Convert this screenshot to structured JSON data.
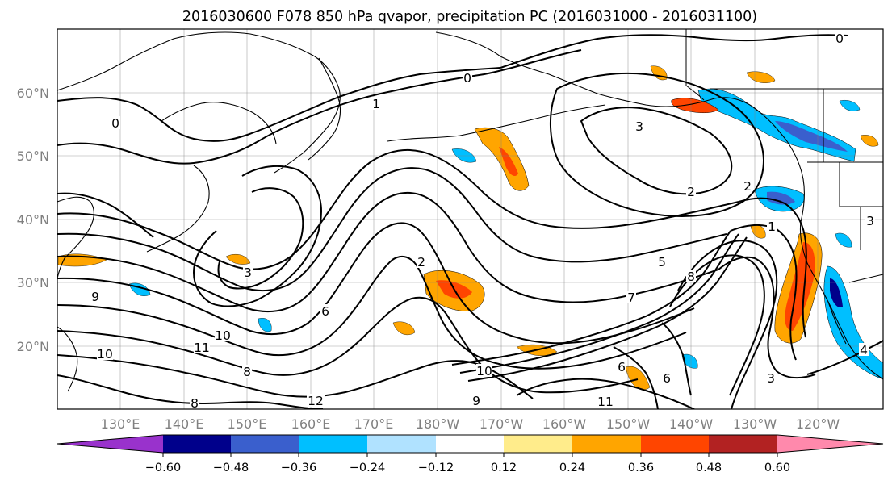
{
  "title": "2016030600 F078 850 hPa qvapor, precipitation PC (2016031000 - 2016031100)",
  "map": {
    "lon_labels": [
      "130°E",
      "140°E",
      "150°E",
      "160°E",
      "170°E",
      "180°W",
      "170°W",
      "160°W",
      "150°W",
      "140°W",
      "130°W",
      "120°W"
    ],
    "lat_labels": [
      "60°N",
      "50°N",
      "40°N",
      "30°N",
      "20°N"
    ],
    "contour_labels": [
      "0",
      "0",
      "1",
      "0",
      "3",
      "2",
      "2",
      "3",
      "3",
      "9",
      "10",
      "11",
      "10",
      "8",
      "8",
      "12",
      "9",
      "10",
      "11",
      "8",
      "7",
      "6",
      "5",
      "6",
      "4",
      "3",
      "2",
      "6",
      "1"
    ]
  },
  "colorbar": {
    "tick_labels": [
      "−0.60",
      "−0.48",
      "−0.36",
      "−0.24",
      "−0.12",
      "0.12",
      "0.24",
      "0.36",
      "0.48",
      "0.60"
    ],
    "colors": [
      "#9932cc",
      "#00008b",
      "#3a5fcd",
      "#00bfff",
      "#b0e2ff",
      "#ffffff",
      "#ffec8b",
      "#ffa500",
      "#ff4500",
      "#b22222",
      "#ff89ac"
    ]
  }
}
